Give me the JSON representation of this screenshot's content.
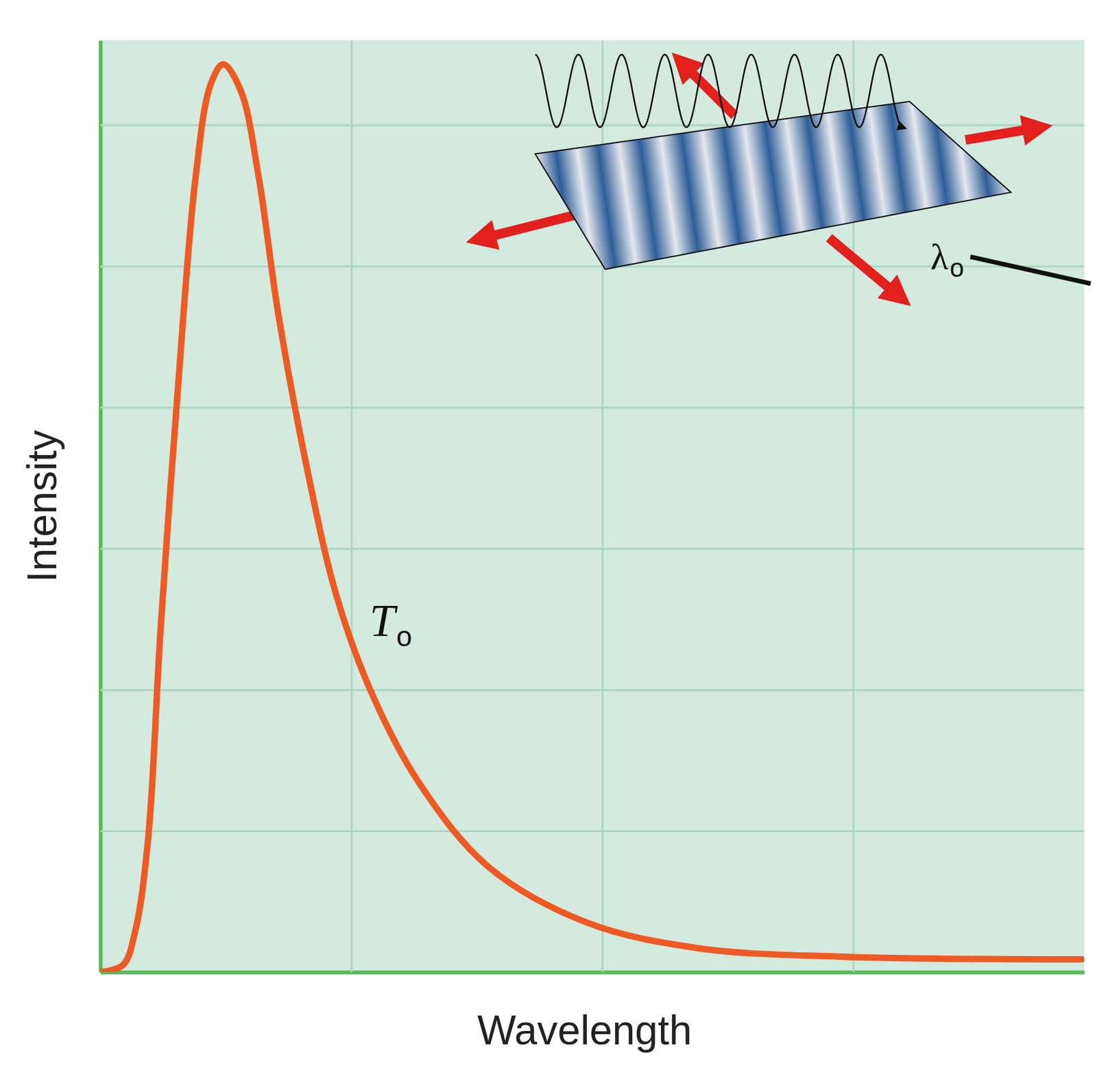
{
  "chart_data": {
    "type": "line",
    "xlabel": "Wavelength",
    "ylabel": "Intensity",
    "x": [
      0,
      0.09,
      0.14,
      0.19,
      0.24,
      0.31,
      0.38,
      0.44,
      0.49,
      0.56,
      0.63,
      0.71,
      0.83,
      0.94,
      1.08,
      1.27,
      1.55,
      1.94,
      2.38,
      2.94,
      3.91
    ],
    "values": [
      0,
      0.05,
      0.3,
      0.94,
      2.43,
      4.16,
      5.64,
      6.29,
      6.43,
      6.24,
      5.64,
      4.65,
      3.51,
      2.67,
      1.98,
      1.34,
      0.74,
      0.35,
      0.17,
      0.11,
      0.09
    ],
    "color": "#ef5a24",
    "xlim": [
      0,
      3.92
    ],
    "ylim": [
      0,
      6.6
    ],
    "xticks": [
      1,
      2,
      3
    ],
    "yticks": [
      1,
      2,
      3,
      4,
      5,
      6
    ],
    "grid": true,
    "tick_labels": false,
    "annotations": [
      {
        "text": "T",
        "subscript": "o"
      },
      {
        "text": "λ",
        "subscript": "o"
      }
    ]
  }
}
